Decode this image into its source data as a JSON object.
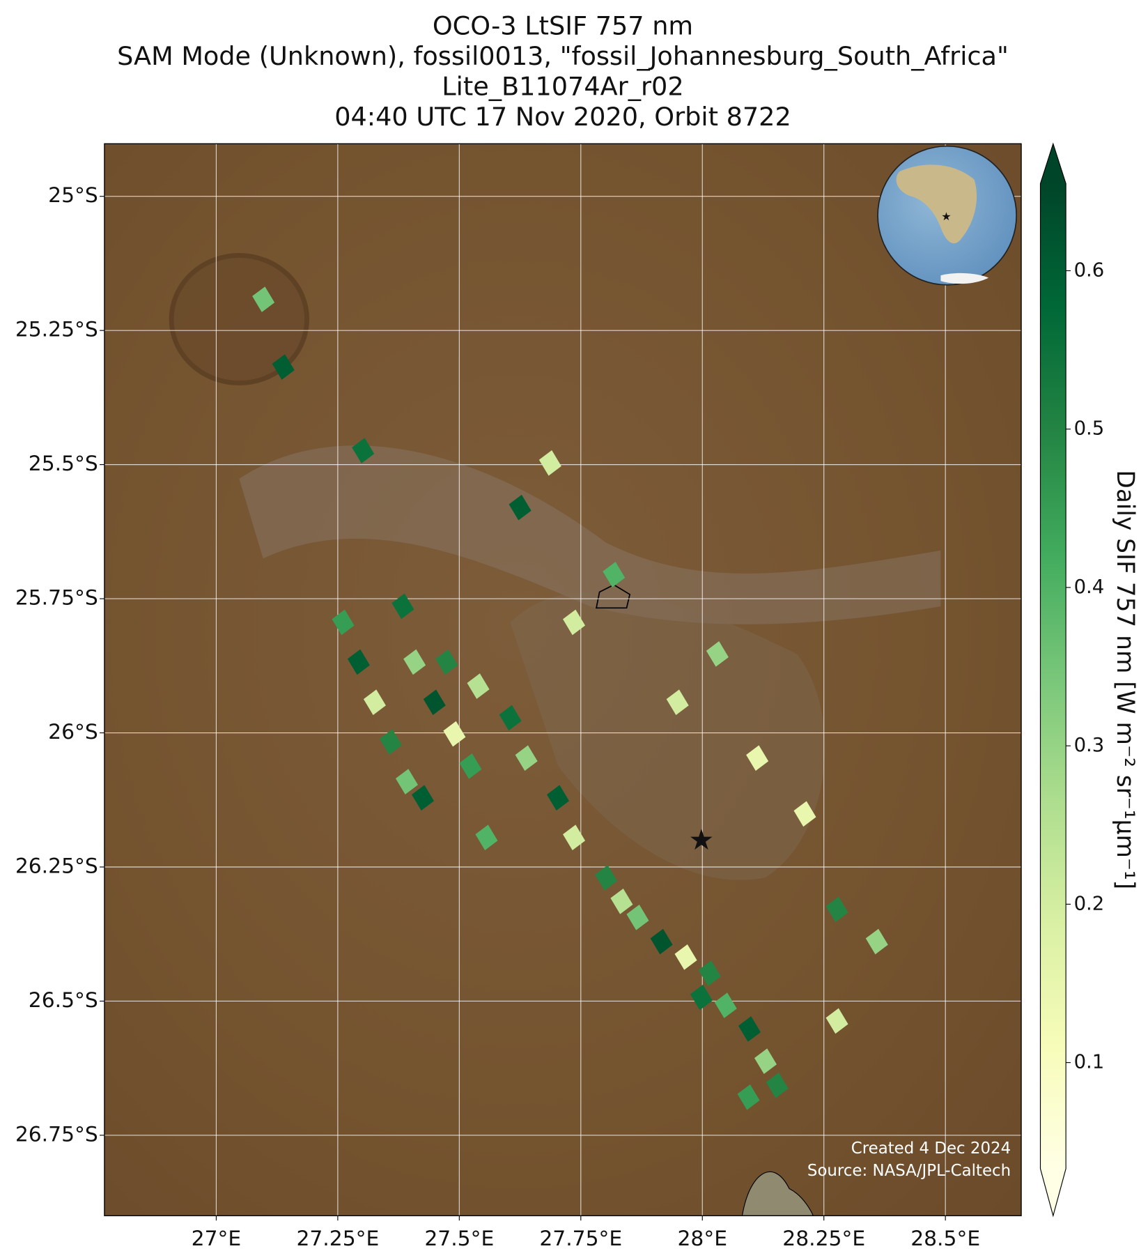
{
  "chart_data": {
    "type": "map",
    "title": [
      "OCO-3 LtSIF 757 nm",
      "SAM Mode (Unknown), fossil0013, \"fossil_Johannesburg_South_Africa\"",
      "Lite_B11074Ar_r02",
      "04:40 UTC 17 Nov 2020, Orbit 8722"
    ],
    "xlim": [
      26.77,
      28.656
    ],
    "ylim": [
      -26.9,
      -24.902
    ],
    "xticks": [
      {
        "value": 27,
        "label": "27°E"
      },
      {
        "value": 27.25,
        "label": "27.25°E"
      },
      {
        "value": 27.5,
        "label": "27.5°E"
      },
      {
        "value": 27.75,
        "label": "27.75°E"
      },
      {
        "value": 28,
        "label": "28°E"
      },
      {
        "value": 28.25,
        "label": "28.25°E"
      },
      {
        "value": 28.5,
        "label": "28.5°E"
      }
    ],
    "yticks": [
      {
        "value": -25,
        "label": "25°S"
      },
      {
        "value": -25.25,
        "label": "25.25°S"
      },
      {
        "value": -25.5,
        "label": "25.5°S"
      },
      {
        "value": -25.75,
        "label": "25.75°S"
      },
      {
        "value": -26,
        "label": "26°S"
      },
      {
        "value": -26.25,
        "label": "26.25°S"
      },
      {
        "value": -26.5,
        "label": "26.5°S"
      },
      {
        "value": -26.75,
        "label": "26.75°S"
      }
    ],
    "grid": true,
    "lon": [
      27.261,
      27.293,
      27.326,
      27.359,
      27.392,
      27.425,
      27.384,
      27.408,
      27.449,
      27.49,
      27.523,
      27.556,
      27.474,
      27.539,
      27.605,
      27.638,
      27.703,
      27.736,
      27.802,
      27.867,
      27.916,
      27.966,
      28.015,
      28.048,
      28.097,
      28.13,
      28.154,
      27.834,
      27.998,
      28.031,
      27.949,
      28.113,
      28.359,
      28.277,
      27.818,
      27.687,
      27.097,
      27.138,
      27.302,
      27.625,
      27.736,
      28.211,
      28.277,
      28.095
    ],
    "lat": [
      -25.794,
      -25.868,
      -25.943,
      -26.017,
      -26.091,
      -26.121,
      -25.764,
      -25.868,
      -25.943,
      -26.002,
      -26.062,
      -26.195,
      -25.868,
      -25.913,
      -25.972,
      -26.047,
      -26.121,
      -26.195,
      -26.27,
      -26.344,
      -26.389,
      -26.418,
      -26.448,
      -26.508,
      -26.552,
      -26.612,
      -26.657,
      -26.314,
      -26.493,
      -25.853,
      -25.943,
      -26.047,
      -26.389,
      -26.329,
      -25.705,
      -25.497,
      -25.192,
      -25.318,
      -25.474,
      -25.58,
      -25.794,
      -26.151,
      -26.537,
      -26.679
    ],
    "values": [
      0.45,
      0.6,
      0.2,
      0.5,
      0.35,
      0.6,
      0.55,
      0.3,
      0.62,
      0.15,
      0.45,
      0.4,
      0.5,
      0.25,
      0.55,
      0.3,
      0.6,
      0.2,
      0.5,
      0.35,
      0.62,
      0.15,
      0.5,
      0.4,
      0.6,
      0.3,
      0.5,
      0.25,
      0.55,
      0.3,
      0.2,
      0.15,
      0.3,
      0.5,
      0.4,
      0.2,
      0.35,
      0.6,
      0.55,
      0.6,
      0.2,
      0.15,
      0.2,
      0.45
    ],
    "target": {
      "lon": 27.998,
      "lat": -26.2,
      "color": "#ff0000"
    },
    "colormap": [
      "#ffffe5",
      "#f7fcb9",
      "#d9f0a3",
      "#addd8e",
      "#78c679",
      "#41ab5d",
      "#238443",
      "#006837",
      "#004529"
    ],
    "clim": [
      0.033,
      0.655
    ],
    "cticks": [
      0.1,
      0.2,
      0.3,
      0.4,
      0.5,
      0.6
    ],
    "colorbar_label": "Daily SIF 757 nm [W m⁻² sr⁻¹μm⁻¹]",
    "credits": [
      "Created 4 Dec 2024",
      "Source: NASA/JPL-Caltech"
    ]
  }
}
